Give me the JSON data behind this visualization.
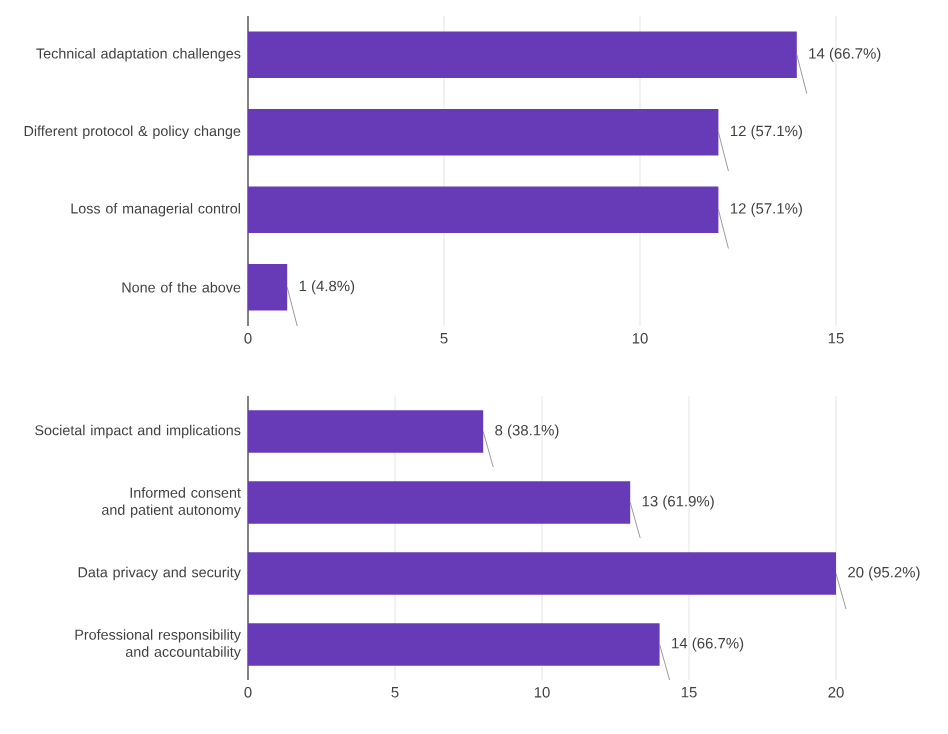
{
  "chart_data": [
    {
      "type": "bar",
      "orientation": "horizontal",
      "categories": [
        "Technical adaptation challenges",
        "Different protocol & policy change",
        "Loss of managerial control",
        "None of the above"
      ],
      "values": [
        14,
        12,
        12,
        1
      ],
      "value_labels": [
        "14 (66.7%)",
        "12 (57.1%)",
        "12 (57.1%)",
        "1 (4.8%)"
      ],
      "color": "#673ab7",
      "xlim": [
        0,
        15
      ],
      "xticks": [
        0,
        5,
        10,
        15
      ],
      "grid": "x"
    },
    {
      "type": "bar",
      "orientation": "horizontal",
      "categories": [
        "Societal impact and implications",
        "Informed consent and patient autonomy",
        "Data privacy and security",
        "Professional responsibility and accountability"
      ],
      "values": [
        8,
        13,
        20,
        14
      ],
      "value_labels": [
        "8 (38.1%)",
        "13 (61.9%)",
        "20 (95.2%)",
        "14 (66.7%)"
      ],
      "color": "#673ab7",
      "xlim": [
        0,
        20
      ],
      "xticks": [
        0,
        5,
        10,
        15,
        20
      ],
      "grid": "x"
    }
  ]
}
